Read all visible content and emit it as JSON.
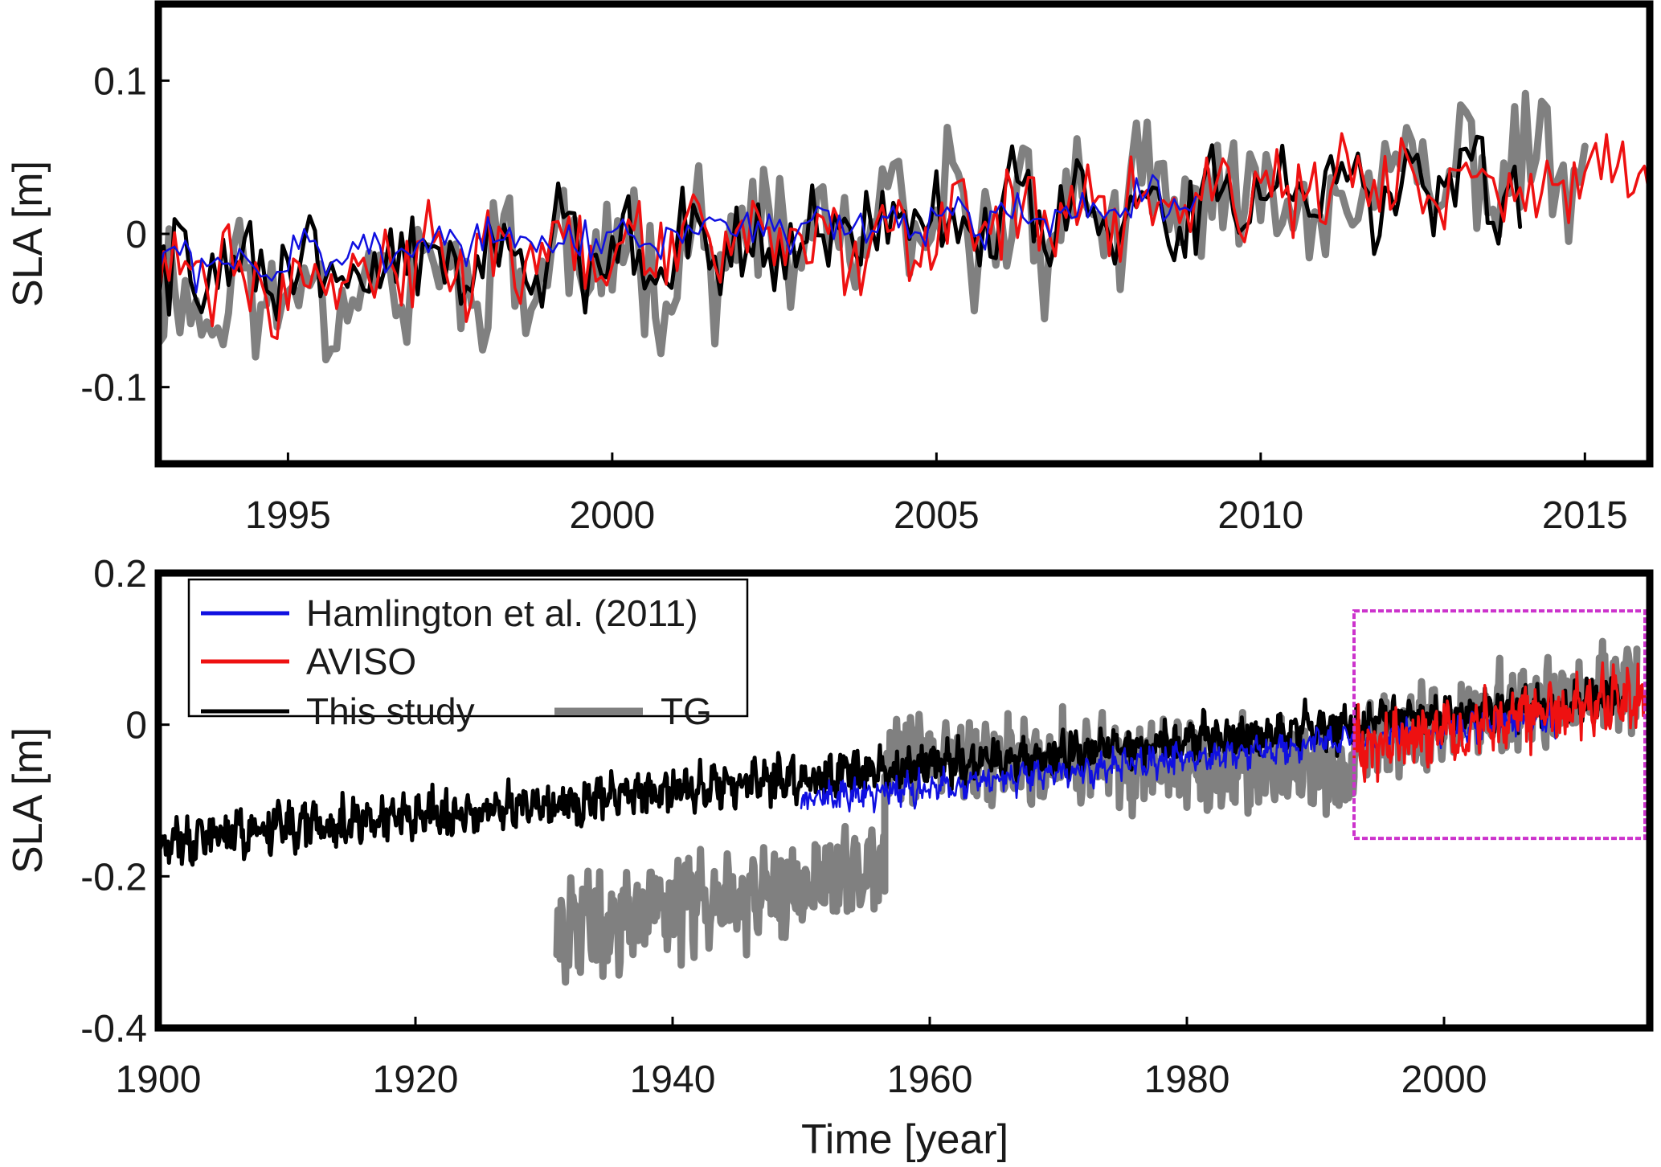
{
  "figure": {
    "colors": {
      "hamlington": "#1010e0",
      "aviso": "#ee1111",
      "this_study": "#000000",
      "tg": "#808080",
      "highlight_box": "#cc33cc",
      "frame": "#000000"
    }
  },
  "chart_data": [
    {
      "id": "top",
      "type": "line",
      "title": "",
      "xlabel": "",
      "ylabel": "SLA [m]",
      "xlim": [
        1993,
        2016
      ],
      "ylim": [
        -0.15,
        0.15
      ],
      "xticks": [
        1995,
        2000,
        2005,
        2010,
        2015
      ],
      "xtick_labels": [
        "1995",
        "2000",
        "2005",
        "2010",
        "2015"
      ],
      "yticks": [
        -0.1,
        0,
        0.1
      ],
      "ytick_labels": [
        "-0.1",
        "0",
        "0.1"
      ],
      "series": [
        {
          "name": "TG",
          "color_key": "tg",
          "width": 9,
          "x_start": 1993.0,
          "x_end": 2015.0,
          "step": 0.0833,
          "mean_start": -0.045,
          "mean_end": 0.045,
          "amplitude": 0.055,
          "seed": 11
        },
        {
          "name": "This study",
          "color_key": "this_study",
          "width": 5,
          "x_start": 1993.0,
          "x_end": 2014.0,
          "step": 0.0833,
          "mean_start": -0.03,
          "mean_end": 0.035,
          "amplitude": 0.04,
          "seed": 22
        },
        {
          "name": "AVISO",
          "color_key": "aviso",
          "width": 3.5,
          "x_start": 1993.0,
          "x_end": 2016.0,
          "step": 0.0833,
          "mean_start": -0.03,
          "mean_end": 0.04,
          "amplitude": 0.038,
          "seed": 33
        },
        {
          "name": "Hamlington et al. (2011)",
          "color_key": "hamlington",
          "width": 2.5,
          "x_start": 1993.0,
          "x_end": 2009.0,
          "step": 0.0833,
          "mean_start": -0.02,
          "mean_end": 0.02,
          "amplitude": 0.018,
          "seed": 44
        }
      ]
    },
    {
      "id": "bottom",
      "type": "line",
      "title": "",
      "xlabel": "Time [year]",
      "ylabel": "SLA [m]",
      "xlim": [
        1900,
        2016
      ],
      "ylim": [
        -0.4,
        0.2
      ],
      "xticks": [
        1900,
        1920,
        1940,
        1960,
        1980,
        2000
      ],
      "xtick_labels": [
        "1900",
        "1920",
        "1940",
        "1960",
        "1980",
        "2000"
      ],
      "yticks": [
        -0.4,
        -0.2,
        0,
        0.2
      ],
      "ytick_labels": [
        "-0.4",
        "-0.2",
        "0",
        "0.2"
      ],
      "highlight_box": {
        "x": [
          1993,
          2016
        ],
        "y": [
          -0.15,
          0.15
        ]
      },
      "legend": {
        "location": "top-left",
        "entries": [
          {
            "label": "Hamlington et al. (2011)",
            "color_key": "hamlington"
          },
          {
            "label": "AVISO",
            "color_key": "aviso"
          },
          {
            "label": "This study",
            "color_key": "this_study"
          },
          {
            "label": "TG",
            "color_key": "tg"
          }
        ]
      },
      "series": [
        {
          "name": "TG",
          "color_key": "tg",
          "width": 9,
          "segments": [
            {
              "x_start": 1931.0,
              "x_end": 1956.5,
              "step": 0.0833,
              "mean_start": -0.27,
              "mean_end": -0.19,
              "amplitude": 0.07,
              "seed": 55
            },
            {
              "x_start": 1956.5,
              "x_end": 1993.0,
              "step": 0.0833,
              "mean_start": -0.04,
              "mean_end": -0.06,
              "amplitude": 0.06,
              "seed": 66
            },
            {
              "x_start": 1993.0,
              "x_end": 2015.0,
              "step": 0.0833,
              "mean_start": -0.03,
              "mean_end": 0.05,
              "amplitude": 0.06,
              "seed": 77
            }
          ]
        },
        {
          "name": "This study",
          "color_key": "this_study",
          "width": 5,
          "segments": [
            {
              "x_start": 1900.0,
              "x_end": 2014.0,
              "step": 0.0833,
              "mean_start": -0.155,
              "mean_end": 0.035,
              "amplitude": 0.032,
              "seed": 88
            }
          ]
        },
        {
          "name": "Hamlington et al. (2011)",
          "color_key": "hamlington",
          "width": 2.5,
          "segments": [
            {
              "x_start": 1950.0,
              "x_end": 2009.0,
              "step": 0.0833,
              "mean_start": -0.1,
              "mean_end": 0.01,
              "amplitude": 0.022,
              "seed": 99
            }
          ]
        },
        {
          "name": "AVISO",
          "color_key": "aviso",
          "width": 3.5,
          "segments": [
            {
              "x_start": 1993.0,
              "x_end": 2016.0,
              "step": 0.0833,
              "mean_start": -0.03,
              "mean_end": 0.04,
              "amplitude": 0.045,
              "seed": 111
            }
          ]
        }
      ]
    }
  ]
}
